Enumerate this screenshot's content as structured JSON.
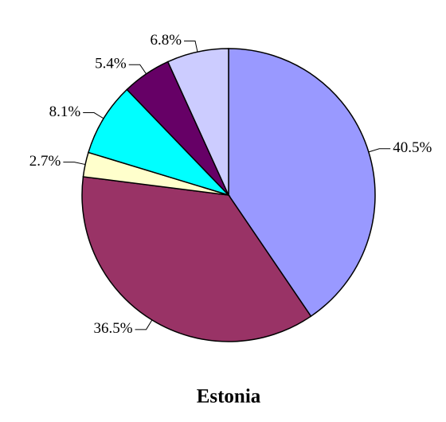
{
  "chart_data": {
    "type": "pie",
    "title": "Estonia",
    "categories": [
      null,
      null,
      null,
      null,
      null,
      null
    ],
    "values": [
      40.5,
      36.5,
      2.7,
      8.1,
      5.4,
      6.8
    ],
    "value_labels": [
      "40.5%",
      "36.5%",
      "2.7%",
      "8.1%",
      "5.4%",
      "6.8%"
    ],
    "colors": [
      "#9999ff",
      "#993366",
      "#ffffcc",
      "#00ffff",
      "#660066",
      "#ccccff"
    ]
  }
}
